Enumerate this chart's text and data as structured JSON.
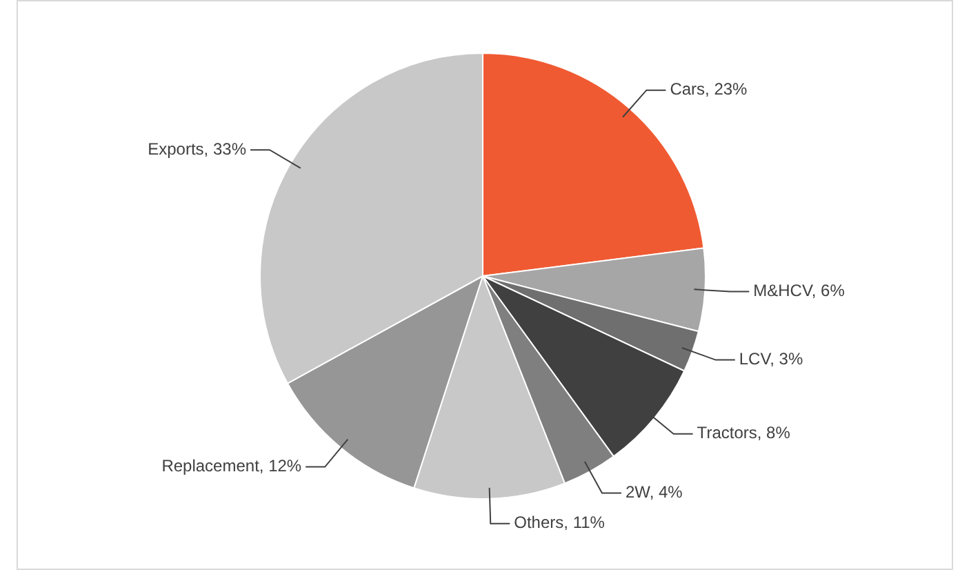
{
  "chart_data": {
    "type": "pie",
    "categories": [
      "Cars",
      "M&HCV",
      "LCV",
      "Tractors",
      "2W",
      "Others",
      "Replacement",
      "Exports"
    ],
    "values": [
      23,
      6,
      3,
      8,
      4,
      11,
      12,
      33
    ],
    "colors": [
      "#f05a32",
      "#a6a6a6",
      "#6f6f6f",
      "#404040",
      "#7f7f7f",
      "#c8c8c8",
      "#969696",
      "#c8c8c8"
    ],
    "value_labels": [
      "23%",
      "6%",
      "3%",
      "8%",
      "4%",
      "11%",
      "12%",
      "33%"
    ],
    "legend": false
  }
}
